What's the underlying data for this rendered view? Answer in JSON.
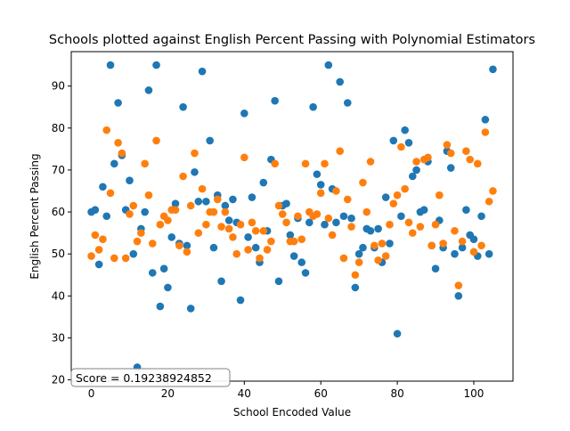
{
  "chart_data": {
    "type": "scatter",
    "title": "Schools plotted against English Percent Passing with Polynomial Estimators",
    "xlabel": "School Encoded Value",
    "ylabel": "English Percent Passing",
    "xlim": [
      -5.25,
      110.25
    ],
    "ylim": [
      19.7,
      98.2
    ],
    "xticks": [
      0,
      20,
      40,
      60,
      80,
      100
    ],
    "yticks": [
      20,
      30,
      40,
      50,
      60,
      70,
      80,
      90
    ],
    "grid": false,
    "annotation": "Score = 0.19238924852",
    "series": [
      {
        "color": "#1f77b4",
        "x": [
          0,
          1,
          2,
          3,
          4,
          5,
          6,
          7,
          8,
          9,
          10,
          11,
          12,
          13,
          14,
          15,
          16,
          17,
          18,
          19,
          20,
          21,
          22,
          23,
          24,
          25,
          26,
          27,
          28,
          29,
          30,
          31,
          32,
          33,
          34,
          35,
          36,
          37,
          38,
          39,
          40,
          41,
          42,
          43,
          44,
          45,
          46,
          47,
          48,
          49,
          50,
          51,
          52,
          53,
          54,
          55,
          56,
          57,
          58,
          59,
          60,
          61,
          62,
          63,
          64,
          65,
          66,
          67,
          68,
          69,
          70,
          71,
          72,
          73,
          74,
          75,
          76,
          77,
          78,
          79,
          80,
          81,
          82,
          83,
          84,
          85,
          86,
          87,
          88,
          89,
          90,
          91,
          92,
          93,
          94,
          95,
          96,
          97,
          98,
          99,
          100,
          101,
          102,
          103,
          104,
          105
        ],
        "y": [
          60,
          60.5,
          47.5,
          66,
          59,
          95,
          71.5,
          86,
          73.5,
          60.5,
          67.5,
          50,
          23,
          56,
          60,
          89,
          45.5,
          95,
          37.5,
          46.5,
          42,
          54,
          62,
          52.5,
          85,
          52,
          37,
          69.5,
          62.5,
          93.5,
          62.5,
          77,
          51.5,
          64,
          43.5,
          61.5,
          58,
          63,
          57.5,
          39,
          83.5,
          54,
          63.5,
          51.5,
          48,
          67,
          55.5,
          72.5,
          86.5,
          43.5,
          61.5,
          62,
          54.5,
          49.5,
          58.5,
          48,
          45.5,
          57.5,
          85,
          69,
          66.5,
          57,
          95,
          65.5,
          57.5,
          91,
          59,
          86,
          58.5,
          42,
          50,
          51.5,
          56,
          55.5,
          51.5,
          56,
          48,
          63.5,
          52.5,
          77,
          31,
          59,
          79.5,
          76.5,
          68.5,
          70,
          60,
          60.5,
          72,
          52,
          46.5,
          58,
          51.5,
          74.5,
          70.5,
          50,
          40,
          51.5,
          60.5,
          54.5,
          53.5,
          49.5,
          59,
          82,
          50,
          94
        ]
      },
      {
        "color": "#ff7f0e",
        "x": [
          0,
          1,
          2,
          3,
          4,
          5,
          6,
          7,
          8,
          9,
          10,
          11,
          12,
          13,
          14,
          15,
          16,
          17,
          18,
          19,
          20,
          21,
          22,
          23,
          24,
          25,
          26,
          27,
          28,
          29,
          30,
          31,
          32,
          33,
          34,
          35,
          36,
          37,
          38,
          39,
          40,
          41,
          42,
          43,
          44,
          45,
          46,
          47,
          48,
          49,
          50,
          51,
          52,
          53,
          54,
          55,
          56,
          57,
          58,
          59,
          60,
          61,
          62,
          63,
          64,
          65,
          66,
          67,
          68,
          69,
          70,
          71,
          72,
          73,
          74,
          75,
          76,
          77,
          78,
          79,
          80,
          81,
          82,
          83,
          84,
          85,
          86,
          87,
          88,
          89,
          90,
          91,
          92,
          93,
          94,
          95,
          96,
          97,
          98,
          99,
          100,
          101,
          102,
          103,
          104,
          105
        ],
        "y": [
          49.5,
          54.5,
          51,
          53.5,
          79.5,
          64.5,
          49,
          76.5,
          74,
          49,
          59.5,
          61.5,
          53,
          55,
          71.5,
          64,
          52.5,
          77,
          57,
          59,
          58,
          60.5,
          60.5,
          52,
          68.5,
          50.5,
          61.5,
          74,
          55,
          65.5,
          57,
          60,
          60,
          63,
          56.5,
          60,
          56,
          54,
          50,
          57,
          73,
          51,
          57.5,
          55.5,
          49,
          55.5,
          51,
          53,
          71.5,
          61.5,
          59.5,
          57.5,
          53,
          53,
          59,
          53.5,
          71.5,
          60,
          59,
          59.5,
          64.5,
          71.5,
          58.5,
          54.5,
          65,
          74.5,
          49,
          63,
          56.5,
          45,
          48,
          67,
          60,
          72,
          52,
          48.5,
          52.5,
          49.5,
          57,
          62,
          64,
          75.5,
          65.5,
          57.5,
          55,
          72,
          56.5,
          72.5,
          73,
          52,
          57,
          64,
          52.5,
          76,
          74,
          55.5,
          42.5,
          53,
          74.5,
          72.5,
          50.5,
          71.5,
          52,
          79,
          62.5,
          65
        ]
      }
    ]
  }
}
